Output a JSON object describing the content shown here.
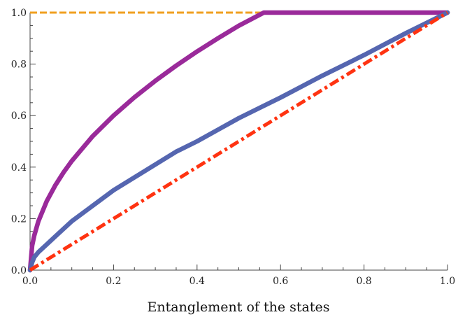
{
  "chart_data": {
    "type": "line",
    "title": "",
    "xlabel": "Entanglement of the states",
    "ylabel": "",
    "xlim": [
      0,
      1
    ],
    "ylim": [
      0,
      1
    ],
    "grid": false,
    "x_ticks": [
      "0.0",
      "0.2",
      "0.4",
      "0.6",
      "0.8",
      "1.0"
    ],
    "y_ticks": [
      "0.0",
      "0.2",
      "0.4",
      "0.6",
      "0.8",
      "1.0"
    ],
    "series": [
      {
        "style": "dashed",
        "color": "#f0a020",
        "x": [
          0,
          0.2,
          0.4,
          0.6,
          0.8,
          1.0
        ],
        "y": [
          1,
          1,
          1,
          1,
          1,
          1
        ]
      },
      {
        "style": "solid",
        "color": "#9a2a9a",
        "x": [
          0,
          0.005,
          0.01,
          0.02,
          0.04,
          0.06,
          0.08,
          0.1,
          0.15,
          0.2,
          0.25,
          0.3,
          0.35,
          0.4,
          0.45,
          0.5,
          0.56,
          0.6,
          0.7,
          0.8,
          0.9,
          1.0
        ],
        "y": [
          0,
          0.095,
          0.134,
          0.19,
          0.268,
          0.328,
          0.379,
          0.424,
          0.52,
          0.6,
          0.671,
          0.735,
          0.794,
          0.849,
          0.9,
          0.949,
          1.0,
          1.0,
          1.0,
          1.0,
          1.0,
          1.0
        ]
      },
      {
        "style": "solid",
        "color": "#5566b0",
        "x": [
          0,
          0.005,
          0.01,
          0.02,
          0.04,
          0.06,
          0.08,
          0.1,
          0.15,
          0.2,
          0.25,
          0.3,
          0.35,
          0.4,
          0.45,
          0.5,
          0.6,
          0.7,
          0.8,
          0.9,
          1.0
        ],
        "y": [
          0,
          0.03,
          0.05,
          0.07,
          0.1,
          0.13,
          0.16,
          0.19,
          0.25,
          0.31,
          0.36,
          0.41,
          0.46,
          0.5,
          0.545,
          0.59,
          0.67,
          0.755,
          0.835,
          0.92,
          1.0
        ]
      },
      {
        "style": "dash-dot",
        "color": "#ff3311",
        "x": [
          0,
          1
        ],
        "y": [
          0,
          1
        ]
      }
    ]
  }
}
